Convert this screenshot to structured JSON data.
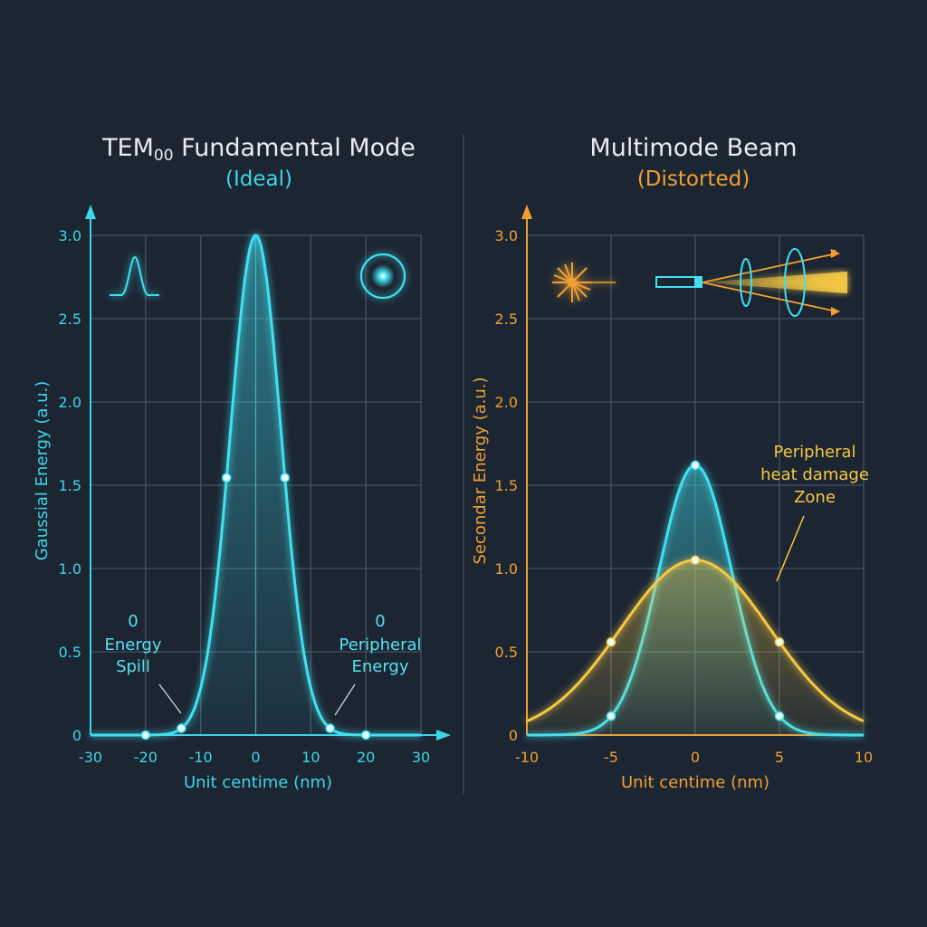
{
  "colors": {
    "background": "#1c2633",
    "cyan": "#40e0f0",
    "orange": "#f0a033",
    "yellow": "#f5c842"
  },
  "left_panel": {
    "title_main": "TEM",
    "title_sub": "00",
    "title_rest": " Fundamental Mode",
    "subtitle": "(Ideal)",
    "icons": [
      "gaussian-profile-icon",
      "beam-spot-icon"
    ],
    "annotations": [
      {
        "value": "0",
        "lines": [
          "Energy",
          "Spill"
        ]
      },
      {
        "value": "0",
        "lines": [
          "Peripheral",
          "Energy"
        ]
      }
    ]
  },
  "right_panel": {
    "title": "Multimode Beam",
    "subtitle": "(Distorted)",
    "icons": [
      "laser-source-icon",
      "optical-setup-icon"
    ],
    "annotation": {
      "lines": [
        "Peripheral",
        "heat damage",
        "Zone"
      ]
    }
  },
  "chart_data": [
    {
      "type": "line",
      "title": "TEM00 Fundamental Mode",
      "subtitle": "(Ideal)",
      "xlabel": "Unit centime (nm)",
      "ylabel": "Gaussial Energy (a.u.)",
      "xlim": [
        -30,
        30
      ],
      "ylim": [
        0,
        3.0
      ],
      "xticks": [
        -30,
        -20,
        -10,
        0,
        10,
        20,
        30
      ],
      "yticks": [
        0,
        0.5,
        1.0,
        1.5,
        2.0,
        2.5,
        3.0
      ],
      "xtick_labels": [
        "-30",
        "-20",
        "-10",
        "0",
        "10",
        "20",
        "30"
      ],
      "ytick_labels": [
        "0",
        "0.5",
        "1.0",
        "1.5",
        "2.0",
        "2.5",
        "3.0"
      ],
      "grid": true,
      "series": [
        {
          "color": "#40e0f0",
          "peak": 3.0,
          "sigma": 4.6,
          "markers_x": [
            -20,
            -13.5,
            -5.3,
            5.3,
            13.5,
            20
          ]
        }
      ]
    },
    {
      "type": "line",
      "title": "Multimode Beam",
      "subtitle": "(Distorted)",
      "xlabel": "Unit centime (nm)",
      "ylabel": "Secondar Energy (a.u.)",
      "xlim": [
        -10,
        10
      ],
      "ylim": [
        0,
        3.0
      ],
      "xticks": [
        -10,
        -5,
        0,
        5,
        10
      ],
      "yticks": [
        0,
        0.5,
        1.0,
        1.5,
        2.0,
        2.5,
        3.0
      ],
      "xtick_labels": [
        "-10",
        "-5",
        "0",
        "5",
        "10"
      ],
      "ytick_labels": [
        "0",
        "0.5",
        "1.0",
        "1.5",
        "2.0",
        "2.5",
        "3.0"
      ],
      "grid": true,
      "series": [
        {
          "color": "#40e0f0",
          "peak": 1.62,
          "sigma": 2.17,
          "markers_x": [
            -5,
            0,
            5
          ]
        },
        {
          "color": "#f5c842",
          "peak": 1.05,
          "sigma": 4.45,
          "markers_x": [
            -5,
            0,
            5
          ]
        }
      ]
    }
  ]
}
